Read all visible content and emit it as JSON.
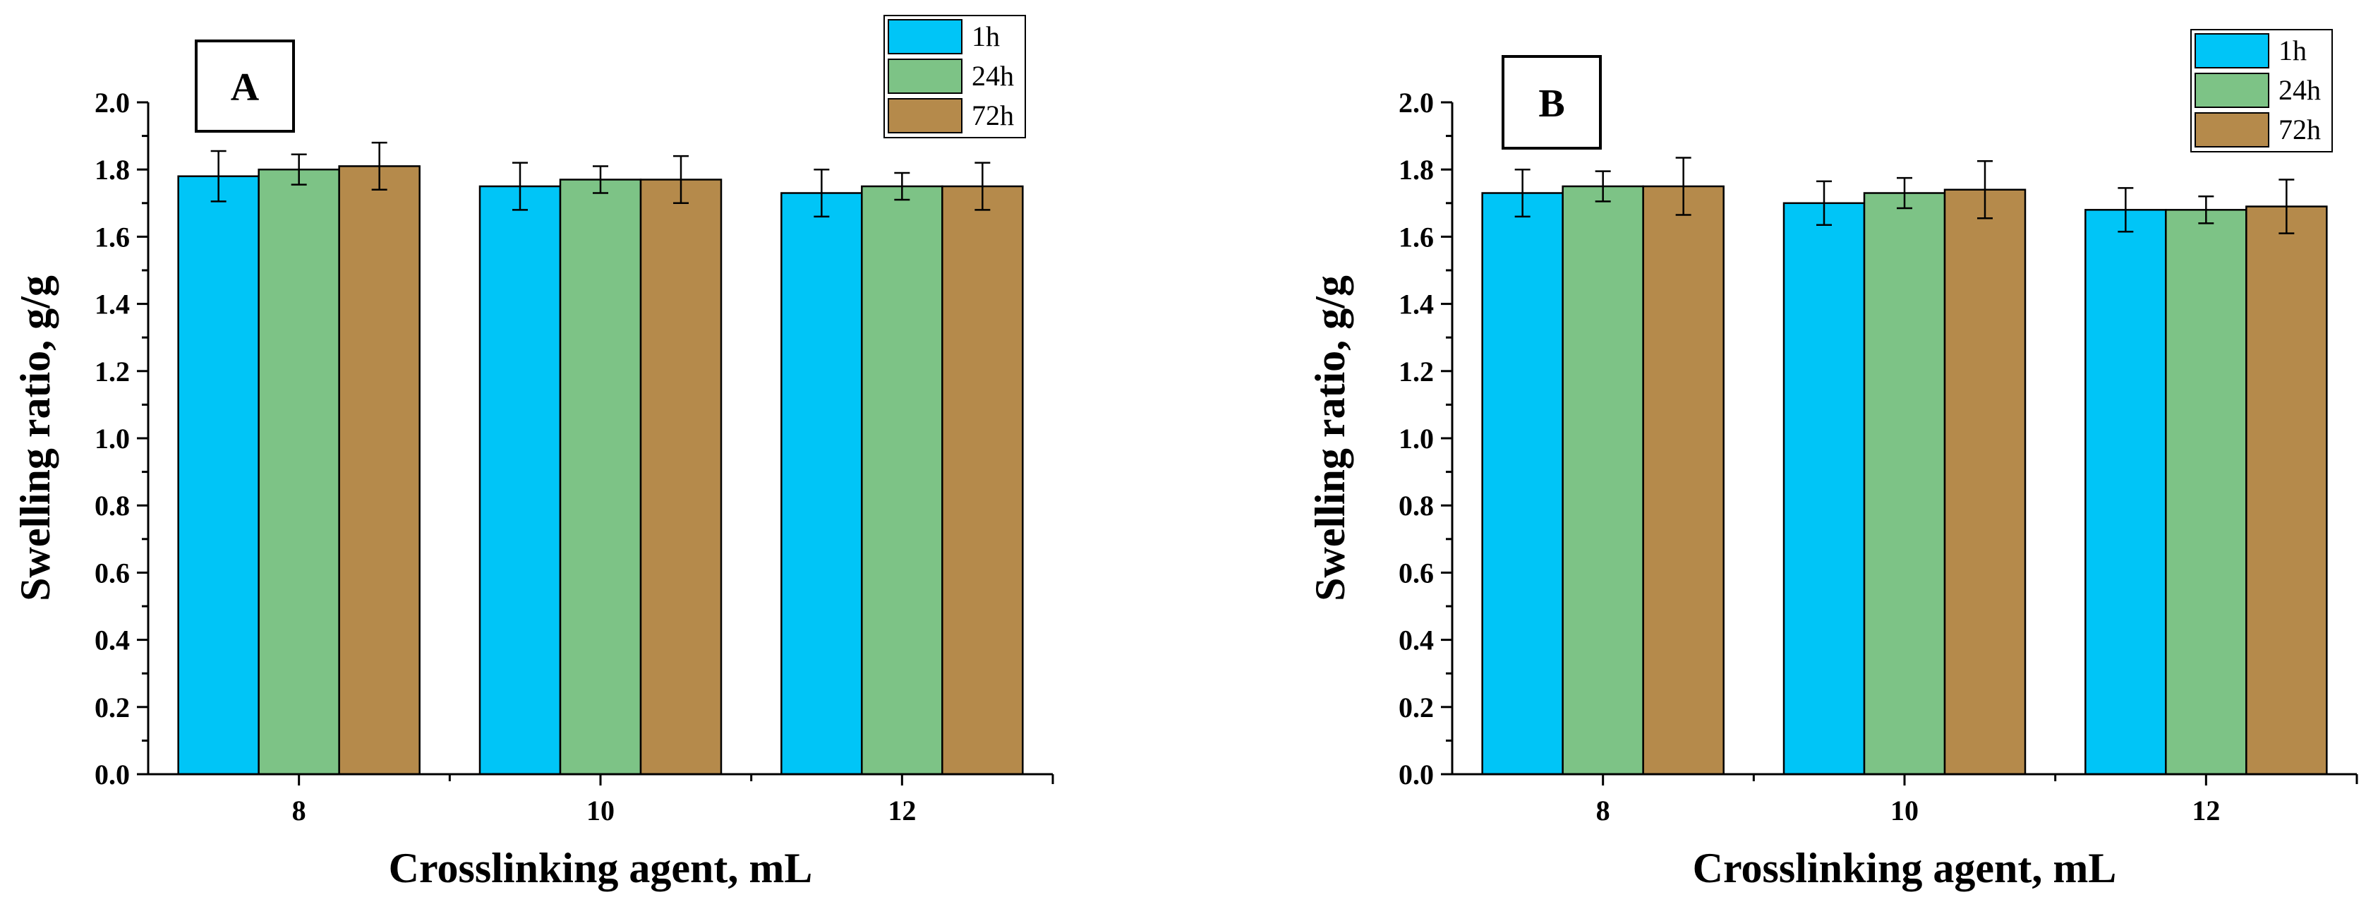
{
  "chart_data": [
    {
      "type": "bar",
      "panel_label": "A",
      "categories": [
        "8",
        "10",
        "12"
      ],
      "series": [
        {
          "name": "1h",
          "color": "#00C5F7",
          "values": [
            1.78,
            1.75,
            1.73
          ],
          "errors": [
            0.075,
            0.07,
            0.07
          ]
        },
        {
          "name": "24h",
          "color": "#7DC386",
          "values": [
            1.8,
            1.77,
            1.75
          ],
          "errors": [
            0.045,
            0.04,
            0.04
          ]
        },
        {
          "name": "72h",
          "color": "#B58A4B",
          "values": [
            1.81,
            1.77,
            1.75
          ],
          "errors": [
            0.07,
            0.07,
            0.07
          ]
        }
      ],
      "xlabel": "Crosslinking agent, mL",
      "ylabel": "Swelling ratio, g/g",
      "ylim": [
        0,
        2.0
      ],
      "yticks": [
        "0.0",
        "0.2",
        "0.4",
        "0.6",
        "0.8",
        "1.0",
        "1.2",
        "1.4",
        "1.6",
        "1.8",
        "2.0"
      ],
      "legend": "top-right"
    },
    {
      "type": "bar",
      "panel_label": "B",
      "categories": [
        "8",
        "10",
        "12"
      ],
      "series": [
        {
          "name": "1h",
          "color": "#00C5F7",
          "values": [
            1.73,
            1.7,
            1.68
          ],
          "errors": [
            0.07,
            0.065,
            0.065
          ]
        },
        {
          "name": "24h",
          "color": "#7DC386",
          "values": [
            1.75,
            1.73,
            1.68
          ],
          "errors": [
            0.045,
            0.045,
            0.04
          ]
        },
        {
          "name": "72h",
          "color": "#B58A4B",
          "values": [
            1.75,
            1.74,
            1.69
          ],
          "errors": [
            0.085,
            0.085,
            0.08
          ]
        }
      ],
      "xlabel": "Crosslinking agent, mL",
      "ylabel": "Swelling ratio, g/g",
      "ylim": [
        0,
        2.0
      ],
      "yticks": [
        "0.0",
        "0.2",
        "0.4",
        "0.6",
        "0.8",
        "1.0",
        "1.2",
        "1.4",
        "1.6",
        "1.8",
        "2.0"
      ],
      "legend": "top-right"
    }
  ]
}
